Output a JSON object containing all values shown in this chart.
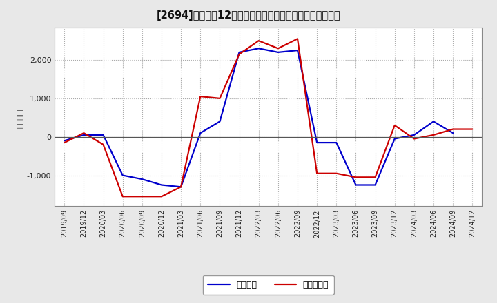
{
  "title": "[⚔]  利益だ12か月移動合計の対前年同期増減額の推移",
  "title_display": "[2694]　利益だ12か月移動合計の対前年同期増減額の推移",
  "ylabel": "（百万円）",
  "x_labels": [
    "2019/09",
    "2019/12",
    "2020/03",
    "2020/06",
    "2020/09",
    "2020/12",
    "2021/03",
    "2021/06",
    "2021/09",
    "2021/12",
    "2022/03",
    "2022/06",
    "2022/09",
    "2022/12",
    "2023/03",
    "2023/06",
    "2023/09",
    "2023/12",
    "2024/03",
    "2024/06",
    "2024/09",
    "2024/12"
  ],
  "blue_values": [
    -100,
    50,
    50,
    -1000,
    -1100,
    -1250,
    -1300,
    100,
    400,
    2200,
    2300,
    2200,
    2250,
    -150,
    -150,
    -1250,
    -1250,
    -50,
    50,
    400,
    100,
    null
  ],
  "red_values": [
    -150,
    100,
    -200,
    -1550,
    -1550,
    -1550,
    -1300,
    1050,
    1000,
    2150,
    2500,
    2300,
    2550,
    -950,
    -950,
    -1050,
    -1050,
    300,
    -50,
    50,
    200,
    200
  ],
  "blue_color": "#0000cc",
  "red_color": "#cc0000",
  "ylim": [
    -1800,
    2850
  ],
  "yticks": [
    -1000,
    0,
    1000,
    2000
  ],
  "bg_color": "#e8e8e8",
  "plot_bg_color": "#ffffff",
  "legend_blue": "経常利益",
  "legend_red": "当期純利益",
  "linewidth": 1.6
}
